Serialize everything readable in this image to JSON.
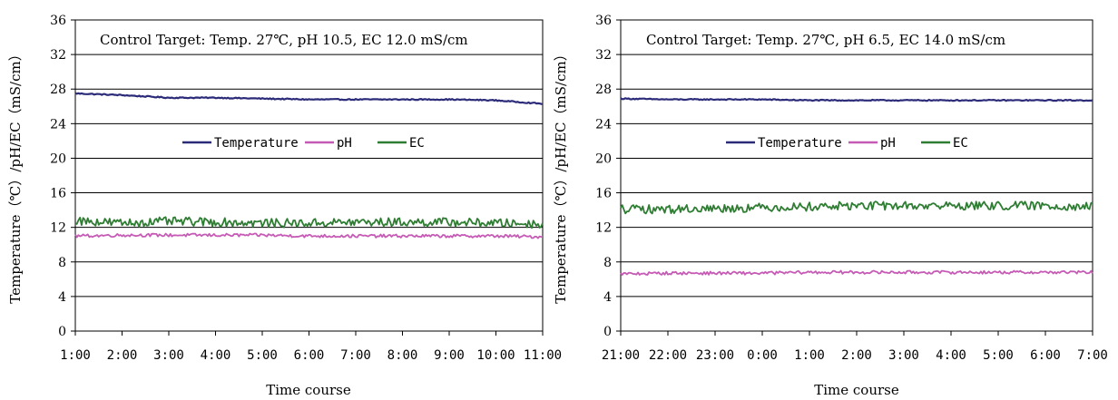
{
  "chart_data": [
    {
      "type": "line",
      "annotation": "Control Target: Temp. 27℃, pH 10.5, EC 12.0 mS/cm",
      "xlabel": "Time course",
      "ylabel": "Temperature（℃）/pH/EC（mS/cm）",
      "categories": [
        "1:00",
        "2:00",
        "3:00",
        "4:00",
        "5:00",
        "6:00",
        "7:00",
        "8:00",
        "9:00",
        "10:00",
        "11:00"
      ],
      "ylim": [
        0,
        36
      ],
      "yticks": [
        0,
        4,
        8,
        12,
        16,
        20,
        24,
        28,
        32,
        36
      ],
      "grid": true,
      "legend": "center",
      "series": [
        {
          "name": "Temperature",
          "color": "#2b2b7a",
          "values": [
            27.5,
            27.3,
            27.0,
            27.0,
            26.9,
            26.8,
            26.8,
            26.8,
            26.8,
            26.7,
            26.3
          ]
        },
        {
          "name": "pH",
          "color": "#c65bb5",
          "values": [
            11.0,
            11.1,
            11.1,
            11.1,
            11.1,
            11.0,
            11.0,
            11.0,
            11.0,
            11.0,
            10.9
          ]
        },
        {
          "name": "EC",
          "color": "#2e7d32",
          "values": [
            12.8,
            12.5,
            12.7,
            12.6,
            12.5,
            12.5,
            12.6,
            12.6,
            12.6,
            12.5,
            12.4
          ]
        }
      ]
    },
    {
      "type": "line",
      "annotation": "Control Target: Temp. 27℃, pH 6.5, EC 14.0 mS/cm",
      "xlabel": "Time course",
      "ylabel": "Temperature（℃）/pH/EC（mS/cm）",
      "categories": [
        "21:00",
        "22:00",
        "23:00",
        "0:00",
        "1:00",
        "2:00",
        "3:00",
        "4:00",
        "5:00",
        "6:00",
        "7:00"
      ],
      "ylim": [
        0,
        36
      ],
      "yticks": [
        0,
        4,
        8,
        12,
        16,
        20,
        24,
        28,
        32,
        36
      ],
      "grid": true,
      "legend": "center",
      "series": [
        {
          "name": "Temperature",
          "color": "#2b2b7a",
          "values": [
            26.9,
            26.8,
            26.8,
            26.8,
            26.7,
            26.7,
            26.7,
            26.7,
            26.7,
            26.7,
            26.7
          ]
        },
        {
          "name": "pH",
          "color": "#c65bb5",
          "values": [
            6.6,
            6.7,
            6.7,
            6.7,
            6.8,
            6.8,
            6.8,
            6.8,
            6.8,
            6.8,
            6.8
          ]
        },
        {
          "name": "EC",
          "color": "#2e7d32",
          "values": [
            14.1,
            14.1,
            14.2,
            14.3,
            14.4,
            14.5,
            14.5,
            14.5,
            14.5,
            14.5,
            14.4
          ]
        }
      ]
    }
  ]
}
